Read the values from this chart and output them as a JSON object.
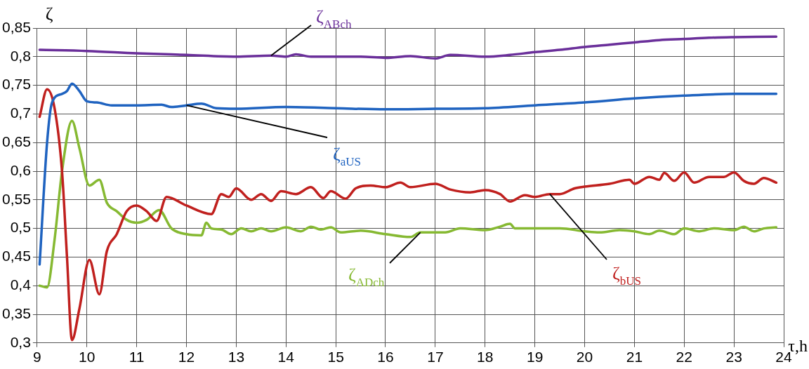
{
  "chart_data": {
    "type": "line",
    "xlabel": "τ,h",
    "ylabel": "ζ",
    "xlim": [
      9,
      24
    ],
    "xticks": [
      9,
      10,
      11,
      12,
      13,
      14,
      15,
      16,
      17,
      18,
      19,
      20,
      21,
      22,
      23,
      24
    ],
    "ylim": [
      0.3,
      0.85
    ],
    "yticks": [
      {
        "value": 0.3,
        "label": "0,3"
      },
      {
        "value": 0.35,
        "label": "0,35"
      },
      {
        "value": 0.4,
        "label": "0,4"
      },
      {
        "value": 0.45,
        "label": "0,45"
      },
      {
        "value": 0.5,
        "label": "0,5"
      },
      {
        "value": 0.55,
        "label": "0,55"
      },
      {
        "value": 0.6,
        "label": "0,6"
      },
      {
        "value": 0.65,
        "label": "0,65"
      },
      {
        "value": 0.7,
        "label": "0,7"
      },
      {
        "value": 0.75,
        "label": "0,75"
      },
      {
        "value": 0.8,
        "label": "0,8"
      },
      {
        "value": 0.85,
        "label": "0,85"
      }
    ],
    "grid": true,
    "legend": false,
    "marker": "none",
    "line_style": "solid",
    "series": [
      {
        "name": "ζ$_{ABch}$",
        "color": "#6a2f9a",
        "x": [
          9.05,
          10,
          11,
          12,
          13,
          13.7,
          14,
          14.2,
          14.5,
          15,
          15.5,
          16,
          16.5,
          17,
          17.3,
          18,
          18.5,
          19,
          19.5,
          20,
          20.5,
          21,
          21.5,
          22,
          22.5,
          23,
          23.85
        ],
        "values": [
          0.812,
          0.81,
          0.806,
          0.803,
          0.8,
          0.802,
          0.8,
          0.804,
          0.8,
          0.8,
          0.8,
          0.798,
          0.801,
          0.797,
          0.803,
          0.8,
          0.803,
          0.808,
          0.812,
          0.817,
          0.821,
          0.825,
          0.829,
          0.831,
          0.833,
          0.834,
          0.835
        ]
      },
      {
        "name": "ζ$_{aUS}$",
        "color": "#1f63c0",
        "x": [
          9.05,
          9.2,
          9.3,
          9.5,
          9.6,
          9.7,
          9.85,
          10,
          10.2,
          10.5,
          11,
          11.5,
          11.7,
          12,
          12.3,
          12.6,
          13,
          14,
          15,
          16,
          17,
          18,
          19,
          20,
          21,
          22,
          23,
          23.85
        ],
        "values": [
          0.437,
          0.65,
          0.72,
          0.735,
          0.74,
          0.753,
          0.74,
          0.722,
          0.72,
          0.715,
          0.715,
          0.716,
          0.712,
          0.715,
          0.718,
          0.71,
          0.709,
          0.712,
          0.71,
          0.708,
          0.709,
          0.71,
          0.715,
          0.72,
          0.727,
          0.732,
          0.735,
          0.735
        ]
      },
      {
        "name": "ζ$_{bUS}$",
        "color": "#c0201e",
        "x": [
          9.05,
          9.2,
          9.35,
          9.5,
          9.6,
          9.7,
          9.85,
          10.05,
          10.25,
          10.4,
          10.6,
          10.8,
          11,
          11.2,
          11.4,
          11.6,
          12,
          12.5,
          12.7,
          12.85,
          13,
          13.3,
          13.5,
          13.7,
          13.9,
          14.2,
          14.5,
          14.75,
          14.9,
          15.2,
          15.4,
          15.7,
          16,
          16.3,
          16.5,
          17,
          17.3,
          17.7,
          18,
          18.3,
          18.5,
          18.8,
          19,
          19.3,
          19.5,
          19.8,
          20,
          20.5,
          20.9,
          21,
          21.3,
          21.5,
          21.6,
          21.8,
          22,
          22.2,
          22.5,
          22.8,
          23,
          23.2,
          23.4,
          23.6,
          23.85
        ],
        "values": [
          0.695,
          0.743,
          0.71,
          0.6,
          0.45,
          0.305,
          0.36,
          0.445,
          0.385,
          0.46,
          0.49,
          0.53,
          0.54,
          0.53,
          0.513,
          0.555,
          0.54,
          0.525,
          0.56,
          0.555,
          0.57,
          0.55,
          0.56,
          0.548,
          0.565,
          0.56,
          0.572,
          0.553,
          0.565,
          0.552,
          0.57,
          0.575,
          0.572,
          0.58,
          0.572,
          0.578,
          0.568,
          0.563,
          0.567,
          0.56,
          0.547,
          0.558,
          0.555,
          0.56,
          0.56,
          0.57,
          0.573,
          0.578,
          0.585,
          0.578,
          0.59,
          0.585,
          0.597,
          0.583,
          0.598,
          0.58,
          0.59,
          0.59,
          0.598,
          0.583,
          0.578,
          0.588,
          0.58
        ]
      },
      {
        "name": "ζ$_{ADch}$",
        "color": "#86b932",
        "x": [
          9.05,
          9.2,
          9.35,
          9.5,
          9.7,
          9.85,
          10.05,
          10.25,
          10.4,
          10.6,
          10.8,
          11,
          11.2,
          11.45,
          11.7,
          12,
          12.3,
          12.4,
          12.5,
          12.7,
          12.9,
          13.1,
          13.3,
          13.5,
          13.7,
          14,
          14.3,
          14.5,
          14.7,
          14.9,
          15.1,
          15.5,
          16,
          16.5,
          16.7,
          17.2,
          17.5,
          18,
          18.3,
          18.5,
          18.6,
          19,
          19.5,
          20,
          20.3,
          20.7,
          21,
          21.3,
          21.5,
          21.8,
          22,
          22.3,
          22.6,
          23,
          23.2,
          23.4,
          23.6,
          23.85
        ],
        "values": [
          0.4,
          0.397,
          0.48,
          0.6,
          0.688,
          0.64,
          0.575,
          0.585,
          0.545,
          0.53,
          0.515,
          0.51,
          0.515,
          0.532,
          0.5,
          0.49,
          0.488,
          0.51,
          0.5,
          0.498,
          0.49,
          0.5,
          0.495,
          0.5,
          0.495,
          0.502,
          0.495,
          0.503,
          0.498,
          0.502,
          0.493,
          0.496,
          0.49,
          0.485,
          0.493,
          0.493,
          0.5,
          0.497,
          0.503,
          0.508,
          0.5,
          0.5,
          0.5,
          0.495,
          0.493,
          0.497,
          0.495,
          0.49,
          0.496,
          0.49,
          0.5,
          0.495,
          0.5,
          0.497,
          0.503,
          0.495,
          0.5,
          0.502
        ]
      }
    ]
  }
}
